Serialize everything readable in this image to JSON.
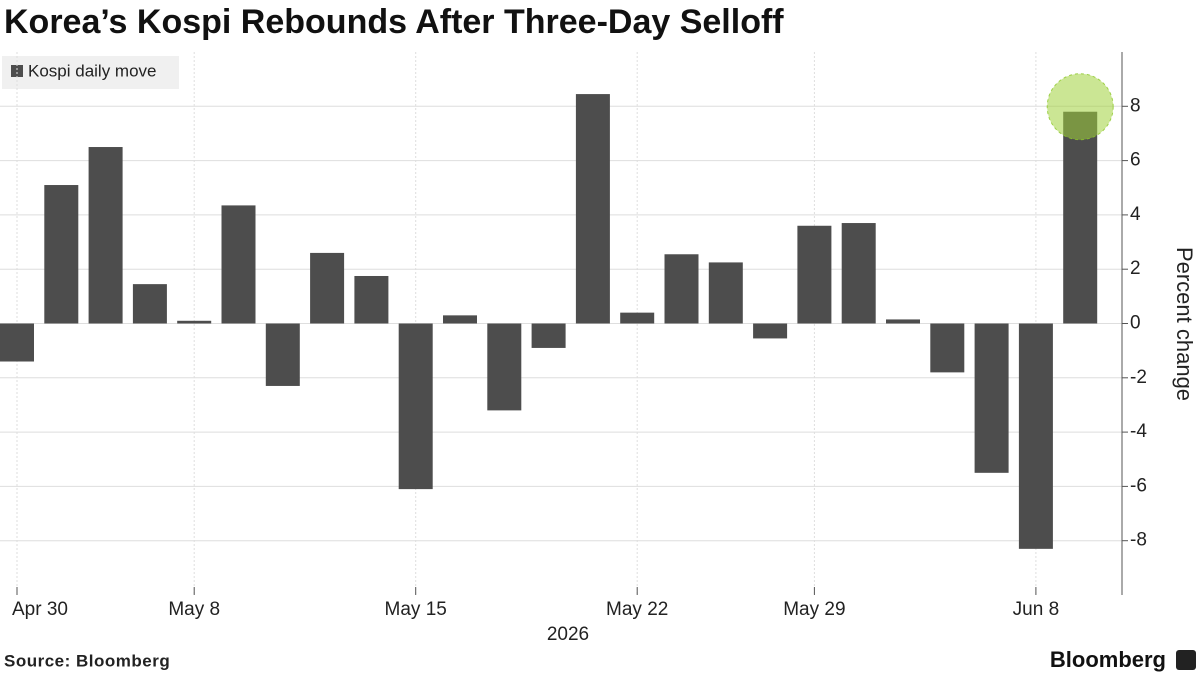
{
  "chart_data": {
    "type": "bar",
    "title": "Korea’s Kospi Rebounds After Three-Day Selloff",
    "legend": "Kospi daily move",
    "color": "#4d4d4d",
    "categories": [
      "Apr 30",
      null,
      null,
      null,
      "May 8",
      null,
      null,
      null,
      null,
      "May 15",
      null,
      null,
      null,
      null,
      "May 22",
      null,
      null,
      null,
      "May 29",
      null,
      null,
      null,
      null,
      "Jun 8",
      null
    ],
    "values": [
      -1.4,
      5.1,
      6.5,
      1.45,
      0.1,
      4.35,
      -2.3,
      2.6,
      1.75,
      -6.1,
      0.3,
      -3.2,
      -0.9,
      8.45,
      0.4,
      2.55,
      2.25,
      -0.55,
      3.6,
      3.7,
      0.15,
      -1.8,
      -5.5,
      -8.3,
      7.8
    ],
    "xlabel": "2026",
    "ylabel": "Percent change",
    "ylim": [
      -10,
      10
    ],
    "yticks": [
      -8,
      -6,
      -4,
      -2,
      0,
      2,
      4,
      6,
      8
    ],
    "grid": true,
    "source": "Source: Bloomberg",
    "brand": "Bloomberg"
  }
}
